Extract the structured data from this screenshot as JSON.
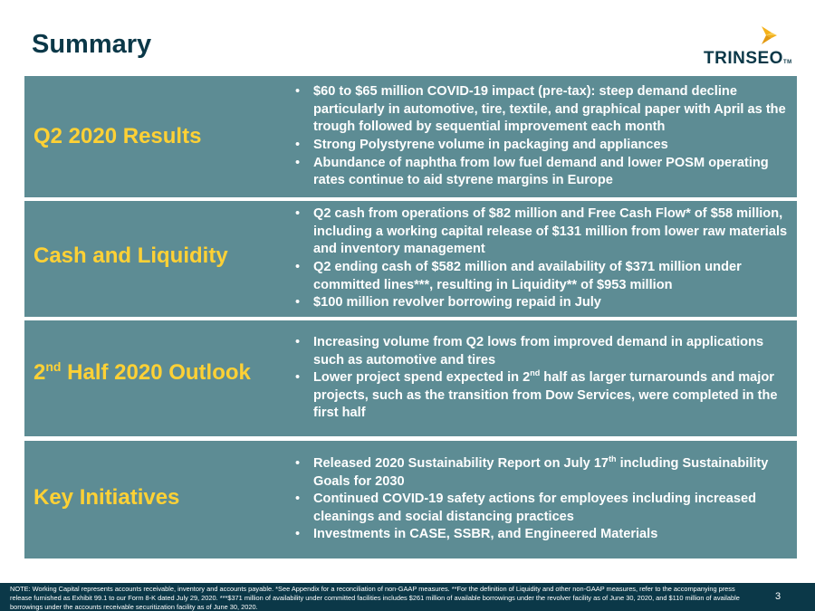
{
  "title": "Summary",
  "logo": {
    "text": "TRINSEO",
    "tm": "TM"
  },
  "rows": [
    {
      "label": "Q2 2020 Results",
      "bullets": [
        "$60 to $65 million COVID-19 impact (pre-tax): steep demand decline particularly in automotive, tire, textile, and graphical paper with April as the trough followed by sequential improvement each month",
        "Strong Polystyrene volume in packaging and appliances",
        "Abundance of naphtha from low fuel demand and lower POSM operating rates continue to aid styrene margins in Europe"
      ]
    },
    {
      "label": "Cash and Liquidity",
      "bullets": [
        "Q2 cash from operations of $82 million and Free Cash Flow* of $58 million, including a working capital release of $131 million from lower raw materials and inventory management",
        "Q2 ending cash of $582 million and availability of $371 million under committed lines***, resulting in Liquidity** of $953 million",
        "$100 million revolver borrowing repaid in July"
      ]
    },
    {
      "label_prefix": "2",
      "label_sup": "nd",
      "label_suffix": " Half 2020 Outlook",
      "bullet1": "Increasing volume from Q2 lows from improved demand in applications such as automotive and tires",
      "bullet2_pre": "Lower project spend expected in 2",
      "bullet2_sup": "nd",
      "bullet2_post": " half as larger turnarounds and major projects, such as the transition from Dow Services, were completed in the first half"
    },
    {
      "label": "Key Initiatives",
      "bullet1_pre": "Released 2020 Sustainability Report on July 17",
      "bullet1_sup": "th",
      "bullet1_post": " including Sustainability Goals for 2030",
      "bullet2": "Continued COVID-19 safety actions for employees including increased cleanings and social distancing practices",
      "bullet3": "Investments in CASE, SSBR, and Engineered Materials"
    }
  ],
  "footer": {
    "note": "NOTE: Working Capital represents accounts receivable, inventory and accounts payable.  *See Appendix for a reconciliation of non-GAAP measures.  **For the definition of Liquidity and other non-GAAP measures, refer to the accompanying press release furnished as Exhibit 99.1 to our Form 8-K dated July 29, 2020.  ***$371 million of availability under committed facilities includes $261 million of available borrowings under the revolver facility as of June 30, 2020, and $110 million of available borrowings under the accounts receivable securitization facility as of June 30, 2020.",
    "page_number": "3"
  },
  "colors": {
    "row_background": "#5d8c94",
    "label_yellow": "#ffd135",
    "navy": "#0b3848",
    "logo_accent": "#f5b21a"
  },
  "icons": {
    "logo_mark": "trinseo-chevron-icon"
  }
}
